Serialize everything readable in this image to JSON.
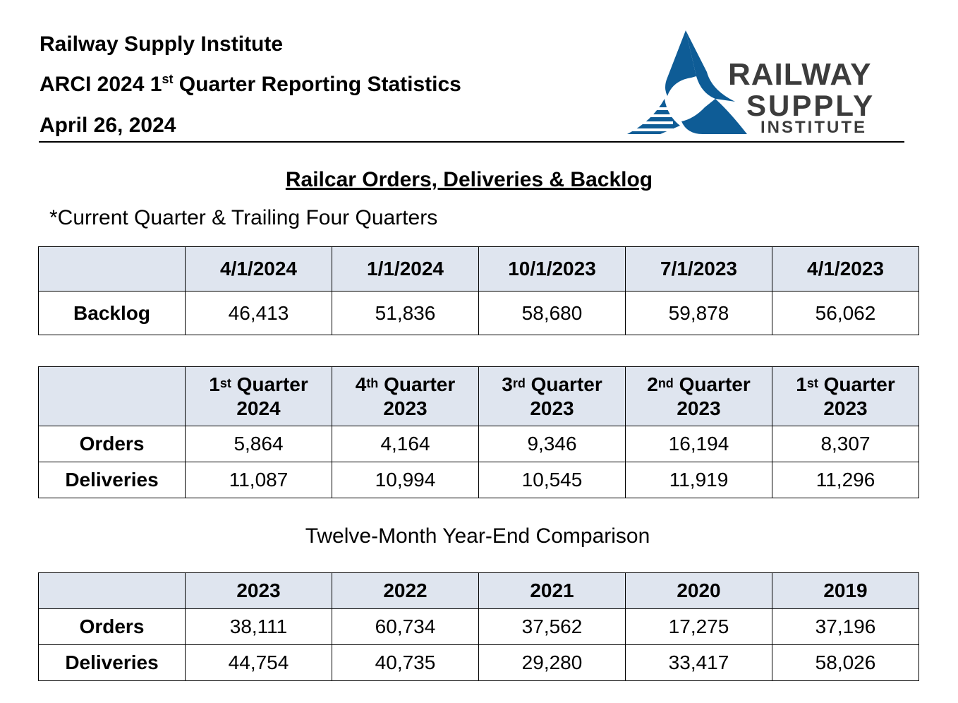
{
  "header": {
    "org": "Railway Supply Institute",
    "report_prefix": "ARCI 2024 1",
    "report_sup": "st",
    "report_suffix": " Quarter Reporting Statistics",
    "date": "April 26, 2024"
  },
  "logo": {
    "line1": "RAILWAY",
    "line2": "SUPPLY",
    "line3": "INSTITUTE",
    "mark_color": "#0e5c96",
    "text_color": "#3c3c3c"
  },
  "section_title": "Railcar Orders, Deliveries & Backlog",
  "note": "*Current Quarter & Trailing Four Quarters",
  "backlog_table": {
    "columns": [
      "4/1/2024",
      "1/1/2024",
      "10/1/2023",
      "7/1/2023",
      "4/1/2023"
    ],
    "row_label": "Backlog",
    "values": [
      "46,413",
      "51,836",
      "58,680",
      "59,878",
      "56,062"
    ]
  },
  "quarterly_table": {
    "columns": [
      {
        "num": "1",
        "sup": "st",
        "word": " Quarter",
        "year": "2024"
      },
      {
        "num": "4",
        "sup": "th",
        "word": " Quarter",
        "year": "2023"
      },
      {
        "num": "3",
        "sup": "rd",
        "word": " Quarter",
        "year": "2023"
      },
      {
        "num": "2",
        "sup": "nd",
        "word": " Quarter",
        "year": "2023"
      },
      {
        "num": "1",
        "sup": "st",
        "word": " Quarter",
        "year": "2023"
      }
    ],
    "rows": [
      {
        "label": "Orders",
        "values": [
          "5,864",
          "4,164",
          "9,346",
          "16,194",
          "8,307"
        ]
      },
      {
        "label": "Deliveries",
        "values": [
          "11,087",
          "10,994",
          "10,545",
          "11,919",
          "11,296"
        ]
      }
    ]
  },
  "yearend_heading": "Twelve-Month Year-End Comparison",
  "yearend_table": {
    "columns": [
      "2023",
      "2022",
      "2021",
      "2020",
      "2019"
    ],
    "rows": [
      {
        "label": "Orders",
        "values": [
          "38,111",
          "60,734",
          "37,562",
          "17,275",
          "37,196"
        ]
      },
      {
        "label": "Deliveries",
        "values": [
          "44,754",
          "40,735",
          "29,280",
          "33,417",
          "58,026"
        ]
      }
    ]
  },
  "colors": {
    "header_fill": "#dfe5ef",
    "border": "#000000"
  }
}
